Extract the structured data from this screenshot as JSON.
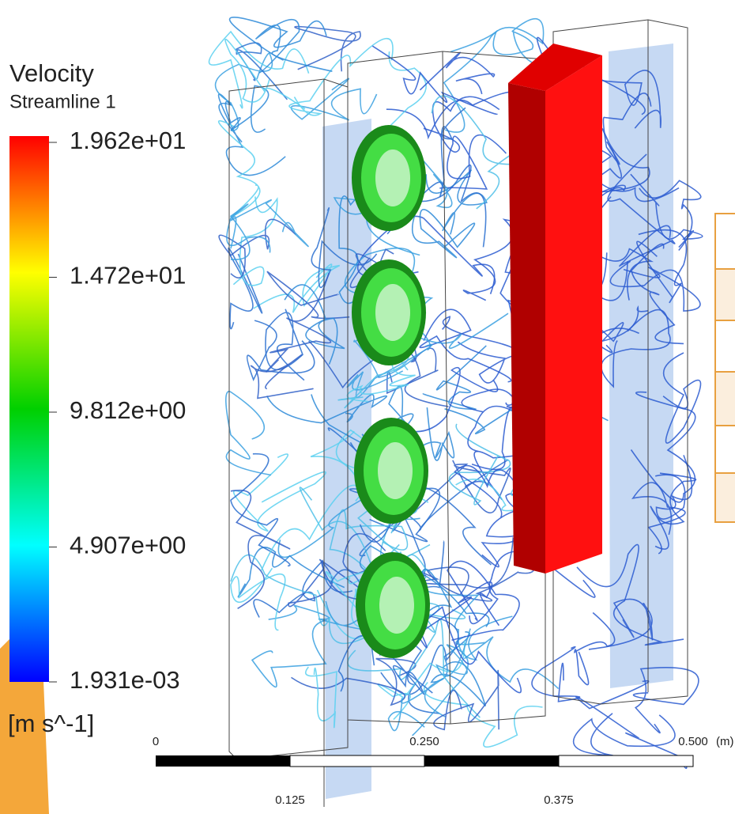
{
  "legend": {
    "title": "Velocity",
    "subtitle": "Streamline 1",
    "labels": [
      "1.962e+01",
      "1.472e+01",
      "9.812e+00",
      "4.907e+00",
      "1.931e-03"
    ],
    "unit": "[m s^-1]"
  },
  "scale_bar": {
    "top_labels": [
      "0",
      "0.250",
      "0.500"
    ],
    "unit": "(m)",
    "bottom_labels": [
      "0.125",
      "0.375"
    ]
  }
}
